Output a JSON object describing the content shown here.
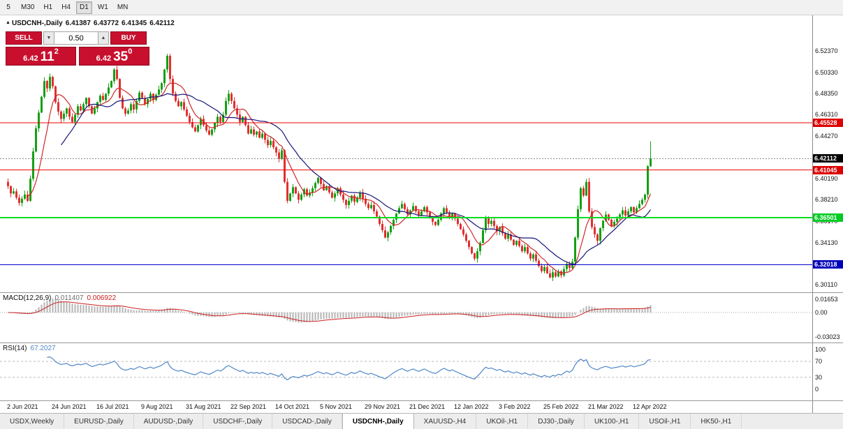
{
  "toolbar": {
    "periods": [
      {
        "label": "5",
        "active": false
      },
      {
        "label": "M30",
        "active": false
      },
      {
        "label": "H1",
        "active": false
      },
      {
        "label": "H4",
        "active": false
      },
      {
        "label": "D1",
        "active": true
      },
      {
        "label": "W1",
        "active": false
      },
      {
        "label": "MN",
        "active": false
      }
    ]
  },
  "icons": {
    "symbol_marker": "▲"
  },
  "chart_header": {
    "symbol": "USDCNH-,Daily",
    "open": "6.41387",
    "high": "6.43772",
    "low": "6.41345",
    "close": "6.42112"
  },
  "trade_panel": {
    "sell_label": "SELL",
    "buy_label": "BUY",
    "volume": "0.50",
    "bid": {
      "prefix": "6.42",
      "pips": "11",
      "sup": "2"
    },
    "ask": {
      "prefix": "6.42",
      "pips": "35",
      "sup": "0"
    },
    "icons": {
      "volume_down": "▼",
      "volume_up": "▲"
    }
  },
  "colors": {
    "up": "#14a014",
    "down": "#e03030",
    "ma_fast": "#d02828",
    "ma_slow": "#16167a",
    "macd_bar": "#b4b4b4",
    "macd_signal": "#cc2020",
    "rsi_line": "#4f87c7",
    "panel_red": "#c8102e"
  },
  "chart_data": {
    "type": "candlestick",
    "symbol": "USDCNH",
    "timeframe": "Daily",
    "price_range": {
      "top": 6.5536,
      "bottom": 6.2946
    },
    "closes": [
      6.395,
      6.388,
      6.39,
      6.384,
      6.379,
      6.383,
      6.387,
      6.381,
      6.402,
      6.428,
      6.45,
      6.465,
      6.48,
      6.495,
      6.488,
      6.499,
      6.49,
      6.475,
      6.466,
      6.459,
      6.464,
      6.469,
      6.461,
      6.456,
      6.463,
      6.471,
      6.467,
      6.473,
      6.479,
      6.471,
      6.464,
      6.469,
      6.475,
      6.481,
      6.477,
      6.483,
      6.489,
      6.495,
      6.506,
      6.497,
      6.479,
      6.469,
      6.464,
      6.467,
      6.473,
      6.468,
      6.476,
      6.484,
      6.479,
      6.473,
      6.478,
      6.483,
      6.477,
      6.482,
      6.487,
      6.493,
      6.506,
      6.519,
      6.497,
      6.483,
      6.476,
      6.471,
      6.475,
      6.468,
      6.462,
      6.456,
      6.451,
      6.447,
      6.453,
      6.459,
      6.453,
      6.448,
      6.444,
      6.449,
      6.455,
      6.461,
      6.456,
      6.463,
      6.476,
      6.483,
      6.476,
      6.469,
      6.463,
      6.456,
      6.461,
      6.453,
      6.445,
      6.449,
      6.444,
      6.447,
      6.441,
      6.445,
      6.439,
      6.434,
      6.438,
      6.432,
      6.427,
      6.421,
      6.429,
      6.399,
      6.381,
      6.388,
      6.394,
      6.388,
      6.382,
      6.387,
      6.392,
      6.386,
      6.389,
      6.393,
      6.398,
      6.403,
      6.397,
      6.391,
      6.395,
      6.389,
      6.384,
      6.388,
      6.393,
      6.387,
      6.382,
      6.377,
      6.381,
      6.386,
      6.38,
      6.384,
      6.389,
      6.383,
      6.378,
      6.374,
      6.377,
      6.371,
      6.366,
      6.359,
      6.353,
      6.346,
      6.351,
      6.357,
      6.363,
      6.369,
      6.374,
      6.378,
      6.373,
      6.368,
      6.372,
      6.376,
      6.371,
      6.367,
      6.371,
      6.375,
      6.37,
      6.365,
      6.361,
      6.358,
      6.363,
      6.369,
      6.374,
      6.37,
      6.365,
      6.369,
      6.364,
      6.359,
      6.354,
      6.349,
      6.343,
      6.337,
      6.331,
      6.326,
      6.333,
      6.341,
      6.353,
      6.365,
      6.359,
      6.362,
      6.357,
      6.352,
      6.356,
      6.35,
      6.345,
      6.349,
      6.344,
      6.339,
      6.343,
      6.338,
      6.333,
      6.337,
      6.331,
      6.326,
      6.33,
      6.324,
      6.319,
      6.314,
      6.318,
      6.312,
      6.308,
      6.313,
      6.309,
      6.314,
      6.31,
      6.316,
      6.321,
      6.317,
      6.323,
      6.346,
      6.373,
      6.393,
      6.386,
      6.399,
      6.371,
      6.356,
      6.349,
      6.343,
      6.355,
      6.362,
      6.368,
      6.363,
      6.357,
      6.361,
      6.364,
      6.368,
      6.372,
      6.367,
      6.371,
      6.375,
      6.37,
      6.374,
      6.378,
      6.382,
      6.387,
      6.414,
      6.421
    ],
    "last_candle": {
      "open": 6.41387,
      "high": 6.43772,
      "low": 6.41345,
      "close": 6.42112
    },
    "price_axis_ticks": [
      "6.52370",
      "6.50330",
      "6.48350",
      "6.46310",
      "6.44270",
      "6.40190",
      "6.38210",
      "6.36170",
      "6.34130",
      "6.30110"
    ],
    "hlines": [
      {
        "price": 6.45528,
        "label": "6.45528",
        "color": "#ee0000",
        "label_bg": "#dd0000",
        "label_color": "#ffffff",
        "width": 1
      },
      {
        "price": 6.41045,
        "label": "6.41045",
        "color": "#ee0000",
        "label_bg": "#dd0000",
        "label_color": "#ffffff",
        "width": 1
      },
      {
        "price": 6.36501,
        "label": "6.36501",
        "color": "#00dd22",
        "label_bg": "#00cc22",
        "label_color": "#ffffff",
        "width": 2
      },
      {
        "price": 6.32018,
        "label": "6.32018",
        "color": "#0000cc",
        "label_bg": "#0000bb",
        "label_color": "#ffffff",
        "width": 1
      }
    ],
    "current_price": {
      "value": 6.42112,
      "label": "6.42112",
      "label_bg": "#000000",
      "label_color": "#ffffff"
    },
    "date_ticks": [
      {
        "label": "2 Jun 2021",
        "index": 0
      },
      {
        "label": "24 Jun 2021",
        "index": 16
      },
      {
        "label": "16 Jul 2021",
        "index": 32
      },
      {
        "label": "9 Aug 2021",
        "index": 48
      },
      {
        "label": "31 Aug 2021",
        "index": 64
      },
      {
        "label": "22 Sep 2021",
        "index": 80
      },
      {
        "label": "14 Oct 2021",
        "index": 96
      },
      {
        "label": "5 Nov 2021",
        "index": 112
      },
      {
        "label": "29 Nov 2021",
        "index": 128
      },
      {
        "label": "21 Dec 2021",
        "index": 144
      },
      {
        "label": "12 Jan 2022",
        "index": 160
      },
      {
        "label": "3 Feb 2022",
        "index": 176
      },
      {
        "label": "25 Feb 2022",
        "index": 192
      },
      {
        "label": "21 Mar 2022",
        "index": 208
      },
      {
        "label": "12 Apr 2022",
        "index": 224
      }
    ],
    "moving_averages": [
      {
        "period": 8,
        "color_key": "ma_fast"
      },
      {
        "period": 20,
        "color_key": "ma_slow"
      }
    ],
    "indicators": {
      "macd": {
        "title": "MACD(12,26,9)",
        "value_main": "0.011407",
        "value_signal": "0.006922",
        "fast": 12,
        "slow": 26,
        "signal": 9,
        "axis_labels": [
          {
            "label": "0.01653",
            "pos": "max"
          },
          {
            "label": "0.00",
            "pos": "zero"
          },
          {
            "label": "-0.03023",
            "pos": "min"
          }
        ]
      },
      "rsi": {
        "title": "RSI(14)",
        "value": "67.2027",
        "period": 14,
        "axis_labels": [
          "100",
          "70",
          "30",
          "0"
        ],
        "levels": [
          70,
          30
        ]
      }
    }
  },
  "tabs": {
    "items": [
      {
        "label": "USDX,Weekly",
        "active": false
      },
      {
        "label": "EURUSD-,Daily",
        "active": false
      },
      {
        "label": "AUDUSD-,Daily",
        "active": false
      },
      {
        "label": "USDCHF-,Daily",
        "active": false
      },
      {
        "label": "USDCAD-,Daily",
        "active": false
      },
      {
        "label": "USDCNH-,Daily",
        "active": true
      },
      {
        "label": "XAUUSD-,H4",
        "active": false
      },
      {
        "label": "UKOil-,H1",
        "active": false
      },
      {
        "label": "DJ30-,Daily",
        "active": false
      },
      {
        "label": "UK100-,H1",
        "active": false
      },
      {
        "label": "USOil-,H1",
        "active": false
      },
      {
        "label": "HK50-,H1",
        "active": false
      }
    ]
  }
}
